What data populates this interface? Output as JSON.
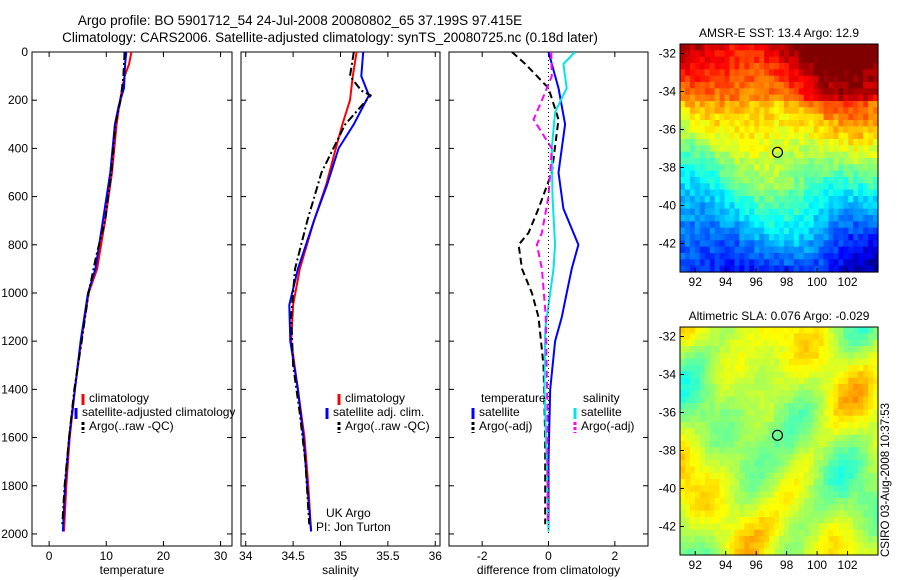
{
  "title": {
    "line1": "Argo profile: BO 5901712_54 24-Jul-2008 20080802_65 37.199S 97.415E",
    "line2": "Climatology: CARS2006. Satellite-adjusted climatology: synTS_20080725.nc (0.18d later)"
  },
  "side_text": "CSIRO 03-Aug-2008 10:37:53",
  "colors": {
    "red": "#ff0000",
    "blue": "#0000ff",
    "black": "#000000",
    "cyan": "#00e5ee",
    "magenta": "#ff00ff"
  },
  "chart_data": [
    {
      "type": "line",
      "panel": "temperature",
      "xlabel": "temperature",
      "ylabel": "",
      "xlim": [
        -3,
        32
      ],
      "ylim": [
        2050,
        0
      ],
      "xticks": [
        "0",
        "10",
        "20",
        "30"
      ],
      "xtick_values": [
        0,
        10,
        20,
        30
      ],
      "yticks": [
        "0",
        "200",
        "400",
        "600",
        "800",
        "1000",
        "1200",
        "1400",
        "1600",
        "1800",
        "2000"
      ],
      "ytick_values": [
        0,
        200,
        400,
        600,
        800,
        1000,
        1200,
        1400,
        1600,
        1800,
        2000
      ],
      "legend": [
        "climatology",
        "satellite-adjusted climatology",
        "Argo(..raw -QC)"
      ],
      "series": [
        {
          "name": "climatology",
          "color": "#ff0000",
          "dash": "solid",
          "x": [
            14.4,
            14.0,
            13.2,
            12.4,
            11.8,
            11.0,
            9.8,
            8.4,
            6.9,
            5.6,
            4.5,
            3.6,
            3.0,
            2.6
          ],
          "y": [
            0,
            50,
            100,
            200,
            300,
            500,
            700,
            900,
            1000,
            1200,
            1400,
            1600,
            1800,
            1990
          ]
        },
        {
          "name": "satellite-adjusted climatology",
          "color": "#0000ff",
          "dash": "solid",
          "x": [
            13.5,
            13.3,
            13.1,
            12.2,
            11.5,
            10.7,
            9.4,
            8.1,
            6.8,
            5.5,
            4.5,
            3.5,
            2.8,
            2.4
          ],
          "y": [
            0,
            50,
            150,
            220,
            300,
            500,
            700,
            900,
            1000,
            1200,
            1400,
            1600,
            1800,
            1990
          ]
        },
        {
          "name": "Argo(..raw -QC)",
          "color": "#000000",
          "dash": "dashdot",
          "x": [
            13.2,
            13.0,
            12.5,
            11.6,
            10.9,
            9.8,
            8.2,
            6.9,
            5.7,
            4.4,
            3.5,
            2.7,
            2.3
          ],
          "y": [
            0,
            100,
            200,
            300,
            500,
            700,
            850,
            1000,
            1200,
            1400,
            1600,
            1800,
            1960
          ]
        }
      ]
    },
    {
      "type": "line",
      "panel": "salinity",
      "xlabel": "salinity",
      "xlim": [
        33.95,
        36.05
      ],
      "ylim": [
        2050,
        0
      ],
      "xticks": [
        "34",
        "34.5",
        "35",
        "35.5",
        "36"
      ],
      "xtick_values": [
        34,
        34.5,
        35,
        35.5,
        36
      ],
      "legend": [
        "climatology",
        "satellite adj. clim.",
        "Argo(..raw -QC)"
      ],
      "annotation": [
        "UK Argo",
        "PI: Jon Turton"
      ],
      "series": [
        {
          "name": "climatology",
          "color": "#ff0000",
          "dash": "solid",
          "x": [
            35.17,
            35.13,
            35.1,
            35.02,
            34.95,
            34.85,
            34.72,
            34.57,
            34.5,
            34.48,
            34.55,
            34.62,
            34.66,
            34.69
          ],
          "y": [
            0,
            100,
            200,
            300,
            400,
            550,
            700,
            900,
            1050,
            1200,
            1400,
            1600,
            1800,
            1990
          ]
        },
        {
          "name": "satellite adj. clim.",
          "color": "#0000ff",
          "dash": "solid",
          "x": [
            35.24,
            35.22,
            35.3,
            35.14,
            34.98,
            34.86,
            34.72,
            34.55,
            34.46,
            34.47,
            34.55,
            34.61,
            34.65,
            34.69
          ],
          "y": [
            0,
            100,
            180,
            300,
            400,
            550,
            700,
            900,
            1050,
            1200,
            1400,
            1600,
            1800,
            1990
          ]
        },
        {
          "name": "Argo(..raw -QC)",
          "color": "#000000",
          "dash": "dashdot",
          "x": [
            35.14,
            35.1,
            35.22,
            35.32,
            35.05,
            34.8,
            34.65,
            34.52,
            34.48,
            34.5,
            34.57,
            34.63,
            34.67
          ],
          "y": [
            0,
            100,
            160,
            180,
            300,
            500,
            700,
            900,
            1100,
            1300,
            1500,
            1700,
            1960
          ]
        }
      ]
    },
    {
      "type": "line",
      "panel": "difference",
      "xlabel": "difference from climatology",
      "xlim": [
        -3,
        3
      ],
      "ylim": [
        2050,
        0
      ],
      "xticks": [
        "-2",
        "0",
        "2"
      ],
      "xtick_values": [
        -2,
        0,
        2
      ],
      "legend_left_title": "temperature",
      "legend_right_title": "salinity",
      "legend_left": [
        "satellite",
        "Argo(-adj)"
      ],
      "legend_right": [
        "satellite",
        "Argo(-adj)"
      ],
      "series": [
        {
          "name": "temperature satellite",
          "color": "#0000ff",
          "dash": "solid",
          "x": [
            0.0,
            0.1,
            0.3,
            0.5,
            0.3,
            0.45,
            0.9,
            0.7,
            0.55,
            0.4,
            0.2,
            0.05,
            0.0,
            0.0
          ],
          "y": [
            0,
            50,
            150,
            300,
            500,
            650,
            800,
            900,
            1000,
            1100,
            1200,
            1400,
            1700,
            1990
          ]
        },
        {
          "name": "temperature Argo(-adj)",
          "color": "#000000",
          "dash": "dash",
          "x": [
            -1.1,
            -0.7,
            0.0,
            0.3,
            0.1,
            -0.3,
            -0.6,
            -0.9,
            -0.8,
            -0.5,
            -0.3,
            -0.15,
            -0.1,
            -0.1
          ],
          "y": [
            0,
            50,
            150,
            280,
            500,
            650,
            750,
            800,
            900,
            1000,
            1100,
            1300,
            1600,
            1960
          ]
        },
        {
          "name": "salinity satellite",
          "color": "#00e5ee",
          "dash": "solid",
          "x": [
            0.8,
            0.45,
            0.55,
            0.2,
            0.1,
            0.12,
            0.2,
            0.15,
            0.05,
            -0.1,
            -0.12,
            -0.05,
            0.0
          ],
          "y": [
            0,
            50,
            150,
            250,
            400,
            600,
            800,
            900,
            1000,
            1150,
            1400,
            1700,
            1990
          ]
        },
        {
          "name": "salinity Argo(-adj)",
          "color": "#ff00ff",
          "dash": "dash",
          "x": [
            0.08,
            0.1,
            -0.2,
            -0.45,
            0.1,
            0.0,
            -0.2,
            -0.35,
            -0.2,
            -0.08,
            -0.03,
            -0.02
          ],
          "y": [
            0,
            100,
            200,
            280,
            400,
            600,
            750,
            800,
            900,
            1100,
            1500,
            1960
          ]
        },
        {
          "name": "zero",
          "color": "#000000",
          "dash": "dot",
          "x": [
            0,
            0
          ],
          "y": [
            0,
            2000
          ]
        }
      ]
    },
    {
      "type": "heatmap",
      "panel": "sst_map",
      "title": "AMSR-E SST: 13.4 Argo: 12.9",
      "xlim": [
        91,
        104
      ],
      "ylim": [
        -43.5,
        -31.5
      ],
      "xticks": [
        "92",
        "94",
        "96",
        "98",
        "100",
        "102"
      ],
      "xtick_values": [
        92,
        94,
        96,
        98,
        100,
        102
      ],
      "yticks": [
        "-32",
        "-34",
        "-36",
        "-38",
        "-40",
        "-42"
      ],
      "ytick_values": [
        -32,
        -34,
        -36,
        -38,
        -40,
        -42
      ],
      "marker": {
        "lon": 97.4,
        "lat": -37.2
      }
    },
    {
      "type": "heatmap",
      "panel": "sla_map",
      "title": "Altimetric SLA: 0.076 Argo: -0.029",
      "xlim": [
        91,
        104
      ],
      "ylim": [
        -43.5,
        -31.5
      ],
      "xticks": [
        "92",
        "94",
        "96",
        "98",
        "100",
        "102"
      ],
      "xtick_values": [
        92,
        94,
        96,
        98,
        100,
        102
      ],
      "yticks": [
        "-32",
        "-34",
        "-36",
        "-38",
        "-40",
        "-42"
      ],
      "ytick_values": [
        -32,
        -34,
        -36,
        -38,
        -40,
        -42
      ],
      "marker": {
        "lon": 97.4,
        "lat": -37.2
      }
    }
  ]
}
